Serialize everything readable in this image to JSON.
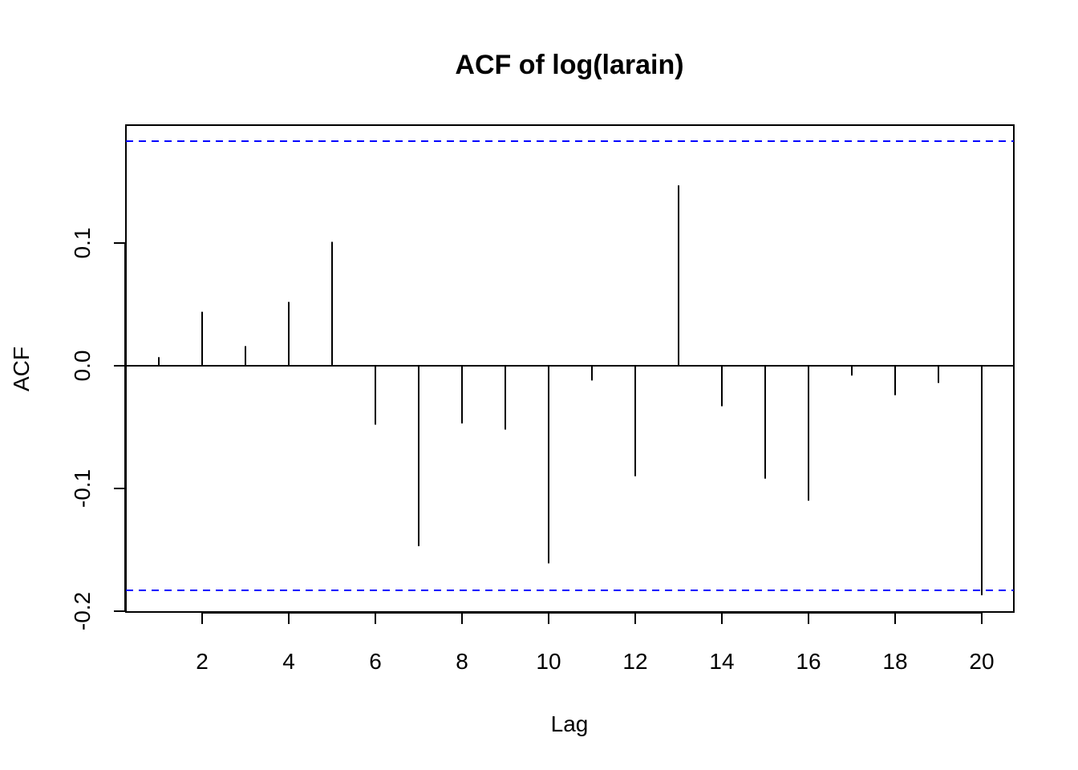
{
  "chart_data": {
    "type": "bar",
    "subtype": "acf-stem",
    "title": "ACF of log(larain)",
    "xlabel": "Lag",
    "ylabel": "ACF",
    "x": [
      1,
      2,
      3,
      4,
      5,
      6,
      7,
      8,
      9,
      10,
      11,
      12,
      13,
      14,
      15,
      16,
      17,
      18,
      19,
      20
    ],
    "values": [
      0.007,
      0.044,
      0.016,
      0.052,
      0.101,
      -0.048,
      -0.147,
      -0.047,
      -0.052,
      -0.161,
      -0.012,
      -0.09,
      0.147,
      -0.033,
      -0.092,
      -0.11,
      -0.008,
      -0.024,
      -0.014,
      -0.187
    ],
    "confidence_bound": 0.183,
    "xlim": [
      0.25,
      20.75
    ],
    "ylim": [
      -0.2,
      0.2
    ],
    "x_ticks": [
      2,
      4,
      6,
      8,
      10,
      12,
      14,
      16,
      18,
      20
    ],
    "x_tick_labels": [
      "2",
      "4",
      "6",
      "8",
      "10",
      "12",
      "14",
      "16",
      "18",
      "20"
    ],
    "y_ticks": [
      -0.2,
      -0.1,
      0.0,
      0.1
    ],
    "y_tick_labels": [
      "-0.2",
      "-0.1",
      "0.0",
      "0.1"
    ],
    "grid": false,
    "colors": {
      "stems": "#000000",
      "confidence_lines": "#0000ff",
      "frame": "#000000"
    }
  }
}
